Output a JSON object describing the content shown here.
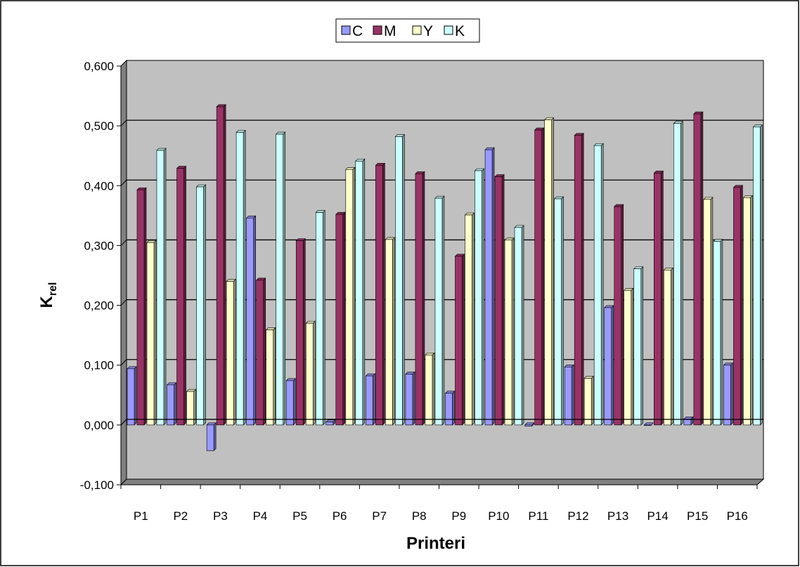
{
  "chart_data": {
    "type": "bar",
    "categories": [
      "P1",
      "P2",
      "P3",
      "P4",
      "P5",
      "P6",
      "P7",
      "P8",
      "P9",
      "P10",
      "P11",
      "P12",
      "P13",
      "P14",
      "P15",
      "P16"
    ],
    "series": [
      {
        "name": "C",
        "color": "#9999ff",
        "values": [
          0.094,
          0.067,
          -0.043,
          0.346,
          0.074,
          0.005,
          0.082,
          0.085,
          0.053,
          0.46,
          -0.002,
          0.097,
          0.196,
          0.0,
          0.01,
          0.1
        ]
      },
      {
        "name": "M",
        "color": "#993366",
        "values": [
          0.393,
          0.429,
          0.532,
          0.242,
          0.308,
          0.352,
          0.434,
          0.42,
          0.282,
          0.415,
          0.493,
          0.484,
          0.365,
          0.421,
          0.52,
          0.397
        ]
      },
      {
        "name": "Y",
        "color": "#ffffcc",
        "values": [
          0.305,
          0.056,
          0.24,
          0.159,
          0.17,
          0.427,
          0.31,
          0.117,
          0.351,
          0.309,
          0.51,
          0.078,
          0.225,
          0.259,
          0.377,
          0.38
        ]
      },
      {
        "name": "K",
        "color": "#ccffff",
        "values": [
          0.459,
          0.398,
          0.489,
          0.486,
          0.355,
          0.441,
          0.482,
          0.379,
          0.425,
          0.33,
          0.378,
          0.467,
          0.261,
          0.504,
          0.307,
          0.498
        ]
      }
    ],
    "y_ticks": [
      "-0,100",
      "0,000",
      "0,100",
      "0,200",
      "0,300",
      "0,400",
      "0,500",
      "0,600"
    ],
    "ylim": [
      -0.1,
      0.6
    ],
    "xlabel": "Printeri",
    "ylabel": "K",
    "ylabel_sub": "rel",
    "grid": true,
    "legend_position": "top-center",
    "plot_color": "#c0c0c0",
    "wall_color": "#808080"
  }
}
